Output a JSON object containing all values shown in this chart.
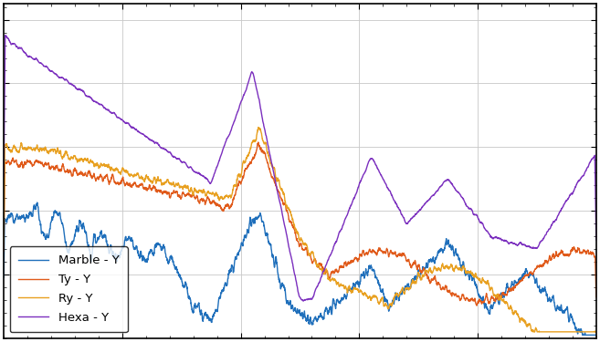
{
  "legend_labels": [
    "Marble - Y",
    "Ty - Y",
    "Ry - Y",
    "Hexa - Y"
  ],
  "colors": [
    "#1f6fbb",
    "#e05a1a",
    "#e8a020",
    "#7b2fbe"
  ],
  "background_color": "#ffffff",
  "grid_color": "#c8c8c8",
  "figsize": [
    6.57,
    3.75
  ],
  "dpi": 100,
  "legend_fontsize": 10,
  "linewidth": 1.0
}
